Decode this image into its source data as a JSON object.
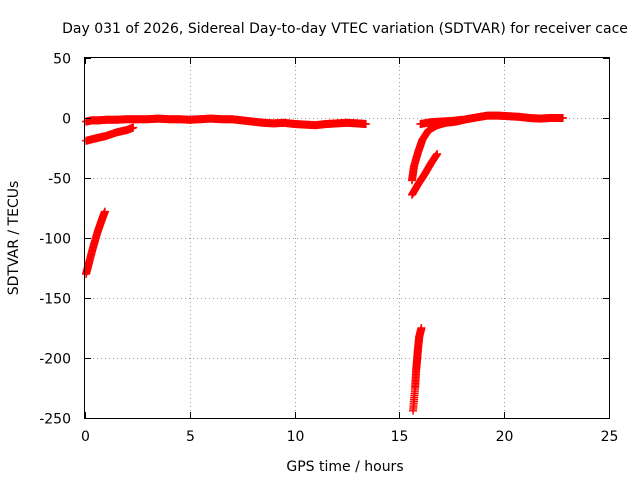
{
  "chart_data": {
    "type": "scatter",
    "title": "Day 031 of 2026, Sidereal Day-to-day VTEC variation (SDTVAR) for receiver cace",
    "xlabel": "GPS time / hours",
    "ylabel": "SDTVAR / TECUs",
    "xlim": [
      0,
      25
    ],
    "ylim": [
      -250,
      50
    ],
    "x_ticks": [
      0,
      5,
      10,
      15,
      20,
      25
    ],
    "y_ticks": [
      -250,
      -200,
      -150,
      -100,
      -50,
      0,
      50
    ],
    "x_tick_labels": [
      "0",
      "5",
      "10",
      "15",
      "20",
      "25"
    ],
    "y_tick_labels": [
      "-250",
      "-200",
      "-150",
      "-100",
      "-50",
      "0",
      "50"
    ],
    "grid": true,
    "legend": "none",
    "marker": "plus",
    "color": "#ff0000",
    "series": [
      {
        "segments": [
          [
            [
              0.05,
              -3
            ],
            [
              0.3,
              -2
            ],
            [
              0.6,
              -2
            ],
            [
              1.0,
              -1.5
            ],
            [
              1.5,
              -1.5
            ],
            [
              2.0,
              -1
            ],
            [
              2.5,
              -1
            ],
            [
              3.0,
              -1
            ],
            [
              3.5,
              -0.5
            ],
            [
              4.0,
              -1
            ],
            [
              4.5,
              -1
            ],
            [
              5.0,
              -1.5
            ],
            [
              5.5,
              -1
            ],
            [
              6.0,
              -0.5
            ],
            [
              6.5,
              -1
            ],
            [
              7.0,
              -1
            ],
            [
              7.5,
              -2
            ],
            [
              8.0,
              -3
            ],
            [
              8.5,
              -4
            ],
            [
              9.0,
              -4.5
            ],
            [
              9.5,
              -4
            ],
            [
              10.0,
              -5
            ],
            [
              10.5,
              -5.5
            ],
            [
              11.0,
              -6
            ],
            [
              11.5,
              -5
            ],
            [
              12.0,
              -4.5
            ],
            [
              12.5,
              -4
            ],
            [
              13.0,
              -4.5
            ],
            [
              13.4,
              -5
            ]
          ],
          [
            [
              0.05,
              -19
            ],
            [
              0.5,
              -17
            ],
            [
              1.0,
              -15
            ],
            [
              1.5,
              -12
            ],
            [
              2.0,
              -10
            ],
            [
              2.3,
              -8
            ]
          ],
          [
            [
              0.05,
              -130
            ],
            [
              0.2,
              -120
            ],
            [
              0.4,
              -107
            ],
            [
              0.6,
              -95
            ],
            [
              0.8,
              -85
            ],
            [
              0.95,
              -78
            ]
          ],
          [
            [
              15.65,
              -244
            ],
            [
              15.75,
              -225
            ],
            [
              15.8,
              -210
            ],
            [
              15.85,
              -200
            ],
            [
              15.9,
              -190
            ],
            [
              15.95,
              -182
            ],
            [
              16.05,
              -175
            ]
          ],
          [
            [
              15.6,
              -64
            ],
            [
              15.9,
              -55
            ],
            [
              16.2,
              -47
            ],
            [
              16.5,
              -38
            ],
            [
              16.8,
              -30
            ]
          ],
          [
            [
              15.6,
              -52
            ],
            [
              15.7,
              -40
            ],
            [
              15.9,
              -28
            ],
            [
              16.1,
              -18
            ],
            [
              16.4,
              -10
            ],
            [
              16.8,
              -6
            ],
            [
              17.2,
              -4
            ],
            [
              17.7,
              -3
            ],
            [
              18.2,
              -1
            ],
            [
              18.7,
              0.5
            ],
            [
              19.2,
              2
            ],
            [
              19.7,
              2
            ],
            [
              20.2,
              1.5
            ],
            [
              20.7,
              1
            ],
            [
              21.2,
              0
            ],
            [
              21.7,
              -0.5
            ],
            [
              22.2,
              0
            ],
            [
              22.8,
              0
            ]
          ],
          [
            [
              16.0,
              -5
            ],
            [
              16.5,
              -3.5
            ],
            [
              17.0,
              -3
            ],
            [
              17.5,
              -2.5
            ],
            [
              18.0,
              -1.5
            ]
          ]
        ]
      }
    ]
  }
}
